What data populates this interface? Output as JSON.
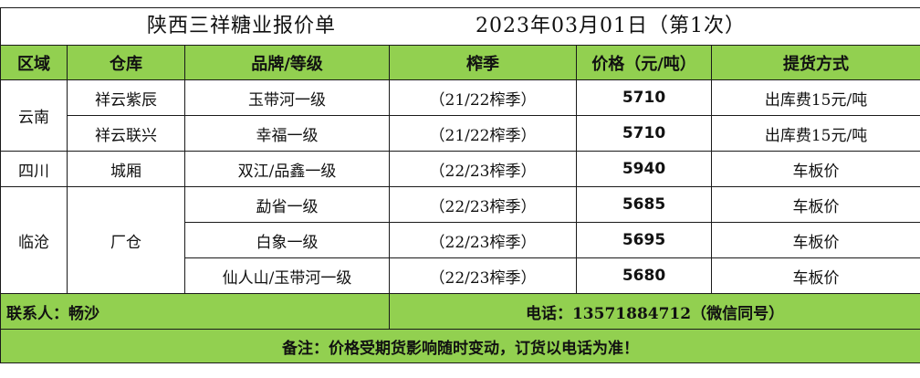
{
  "title": {
    "main": "陕西三祥糖业报价单",
    "date": "2023年03月01日（第1次）"
  },
  "headers": {
    "region": "区域",
    "warehouse": "仓库",
    "brand": "品牌/等级",
    "season": "榨季",
    "price": "价格（元/吨）",
    "delivery": "提货方式"
  },
  "groups": [
    {
      "region": "云南",
      "rows": [
        {
          "warehouse": "祥云紫辰",
          "brand": "玉带河一级",
          "season": "（21/22榨季）",
          "price": "5710",
          "delivery": "出库费15元/吨"
        },
        {
          "warehouse": "祥云联兴",
          "brand": "幸福一级",
          "season": "（21/22榨季）",
          "price": "5710",
          "delivery": "出库费15元/吨"
        }
      ]
    },
    {
      "region": "四川",
      "rows": [
        {
          "warehouse": "城厢",
          "brand": "双江/品鑫一级",
          "season": "（22/23榨季）",
          "price": "5940",
          "delivery": "车板价"
        }
      ]
    },
    {
      "region": "临沧",
      "warehouse": "厂仓",
      "rows": [
        {
          "brand": "勐省一级",
          "season": "（22/23榨季）",
          "price": "5685",
          "delivery": "车板价"
        },
        {
          "brand": "白象一级",
          "season": "（22/23榨季）",
          "price": "5695",
          "delivery": "车板价"
        },
        {
          "brand": "仙人山/玉带河一级",
          "season": "（22/23榨季）",
          "price": "5680",
          "delivery": "车板价"
        }
      ]
    }
  ],
  "contact": {
    "person": "联系人：畅沙",
    "phone": "电话：13571884712（微信同号）"
  },
  "note": "备注：价格受期货影响随时变动，订货以电话为准！",
  "colors": {
    "header_green": "#92d050",
    "border": "#1a1a1a"
  }
}
